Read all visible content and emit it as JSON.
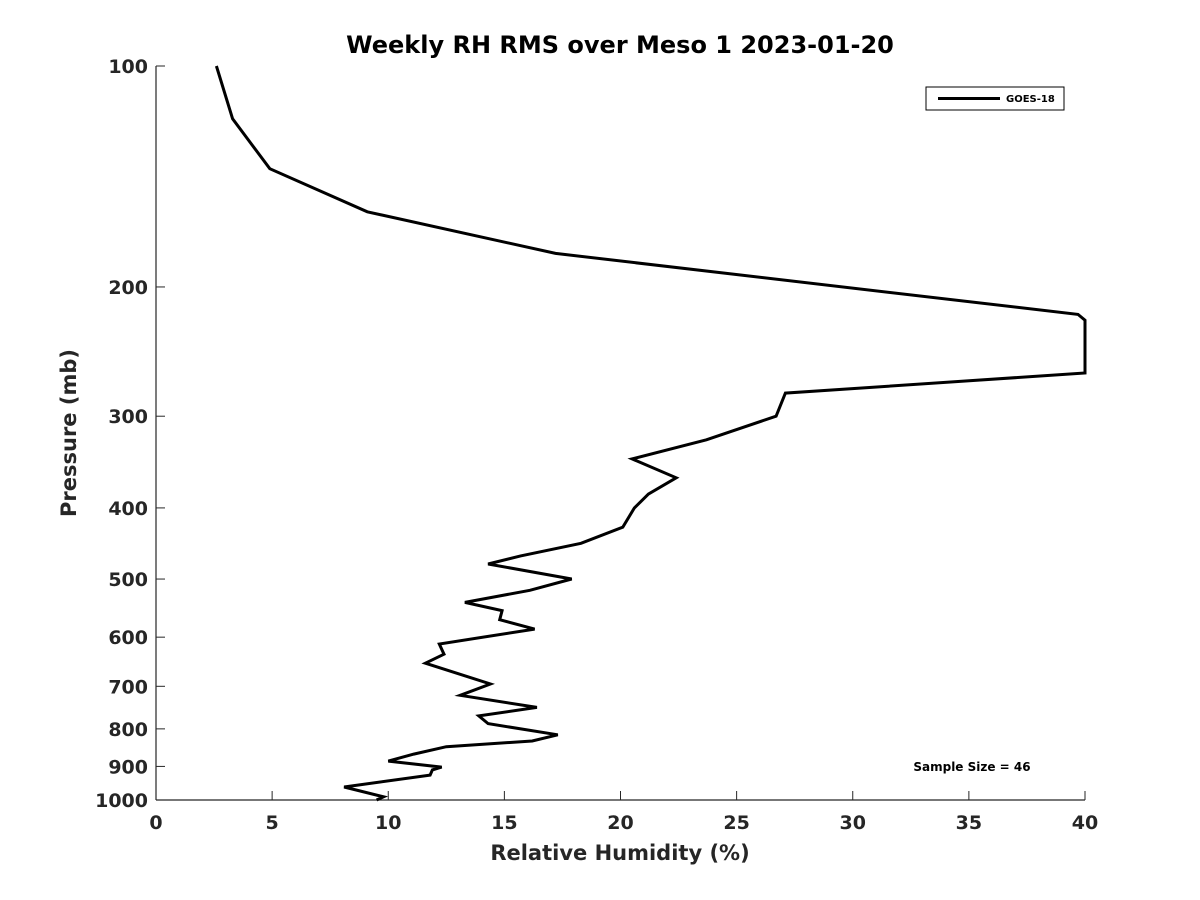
{
  "chart_data": {
    "type": "line",
    "title": "Weekly RH RMS over Meso 1 2023-01-20",
    "xlabel": "Relative Humidity (%)",
    "ylabel": "Pressure (mb)",
    "xlim": [
      0,
      40
    ],
    "ylim": [
      1000,
      100
    ],
    "yscale": "log",
    "y_reversed": true,
    "grid": false,
    "legend_position": "top-right",
    "x_ticks": [
      0,
      5,
      10,
      15,
      20,
      25,
      30,
      35,
      40
    ],
    "y_ticks": [
      100,
      200,
      300,
      400,
      500,
      600,
      700,
      800,
      900,
      1000
    ],
    "annotation": "Sample Size = 46",
    "series": [
      {
        "name": "GOES-18",
        "color": "#000000",
        "points": [
          [
            2.6,
            100
          ],
          [
            3.3,
            118
          ],
          [
            4.9,
            138
          ],
          [
            9.1,
            158
          ],
          [
            17.2,
            180
          ],
          [
            39.7,
            218
          ],
          [
            40.0,
            222
          ],
          [
            40.0,
            262
          ],
          [
            27.1,
            279
          ],
          [
            26.7,
            300
          ],
          [
            23.7,
            323
          ],
          [
            20.5,
            343
          ],
          [
            22.4,
            364
          ],
          [
            21.2,
            383
          ],
          [
            20.6,
            400
          ],
          [
            20.1,
            425
          ],
          [
            18.3,
            447
          ],
          [
            15.7,
            465
          ],
          [
            14.3,
            477
          ],
          [
            17.9,
            500
          ],
          [
            16.1,
            518
          ],
          [
            13.3,
            538
          ],
          [
            14.9,
            552
          ],
          [
            14.8,
            568
          ],
          [
            16.3,
            585
          ],
          [
            12.2,
            613
          ],
          [
            12.4,
            633
          ],
          [
            11.6,
            651
          ],
          [
            14.4,
            695
          ],
          [
            13.1,
            720
          ],
          [
            16.4,
            748
          ],
          [
            13.9,
            768
          ],
          [
            14.3,
            787
          ],
          [
            17.3,
            815
          ],
          [
            16.2,
            831
          ],
          [
            12.5,
            846
          ],
          [
            11.1,
            866
          ],
          [
            10.0,
            885
          ],
          [
            12.3,
            902
          ],
          [
            11.9,
            910
          ],
          [
            11.8,
            925
          ],
          [
            8.1,
            960
          ],
          [
            9.8,
            990
          ],
          [
            9.5,
            1000
          ]
        ]
      }
    ]
  }
}
